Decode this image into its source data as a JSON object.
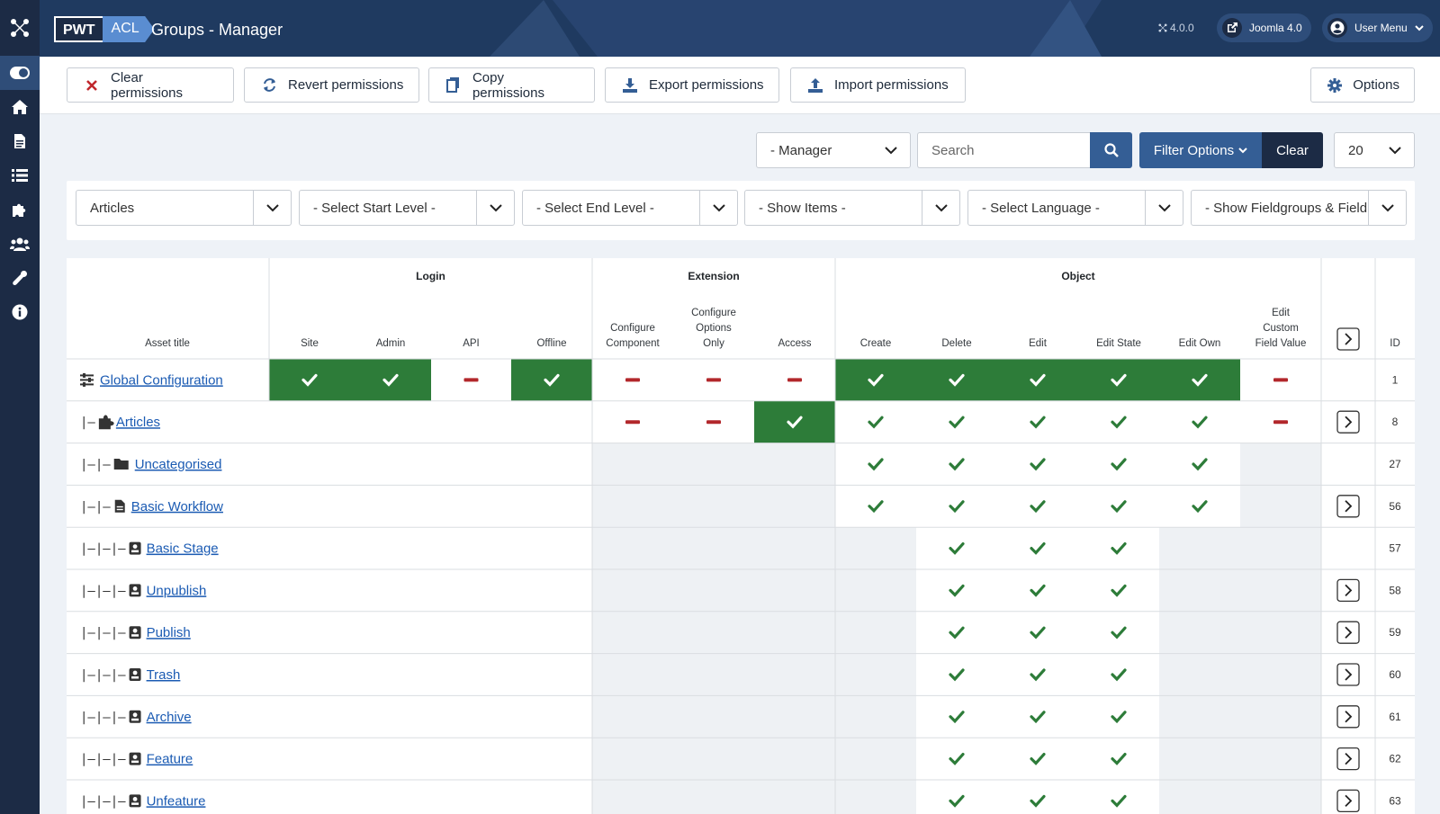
{
  "header": {
    "brand_pwt": "PWT",
    "brand_acl": "ACL",
    "title": "Groups - Manager",
    "version": "4.0.0",
    "site_link": "Joomla 4.0",
    "user_menu": "User Menu"
  },
  "sidebar": {
    "icons": [
      "joomla-logo-icon",
      "toggle-menu-icon",
      "home-icon",
      "content-icon",
      "list-icon",
      "components-icon",
      "users-icon",
      "wrench-icon",
      "info-icon"
    ]
  },
  "toolbar": {
    "clear": "Clear permissions",
    "revert": "Revert permissions",
    "copy": "Copy permissions",
    "export": "Export permissions",
    "import": "Import permissions",
    "options": "Options"
  },
  "filters": {
    "group": "- Manager",
    "search_placeholder": "Search",
    "filter_options": "Filter Options",
    "clear": "Clear",
    "limit": "20",
    "component": "Articles",
    "start_level": "- Select Start Level -",
    "end_level": "- Select End Level -",
    "show_items": "- Show Items -",
    "language": "- Select Language -",
    "fieldgroups": "- Show Fieldgroups & Field"
  },
  "table": {
    "groups": {
      "login": "Login",
      "extension": "Extension",
      "object": "Object"
    },
    "columns": {
      "asset": "Asset title",
      "site": "Site",
      "admin": "Admin",
      "api": "API",
      "offline": "Offline",
      "configure_component": [
        "Configure",
        "Component"
      ],
      "configure_options": [
        "Configure",
        "Options",
        "Only"
      ],
      "access": "Access",
      "create": "Create",
      "delete": "Delete",
      "edit": "Edit",
      "edit_state": "Edit State",
      "edit_own": "Edit Own",
      "edit_custom": [
        "Edit",
        "Custom",
        "Field Value"
      ],
      "id": "ID"
    },
    "rows": [
      {
        "prefix": "",
        "icon": "sliders-icon",
        "title": "Global Configuration",
        "id": "1",
        "expand": false,
        "cells": [
          "yes-bg",
          "yes-bg",
          "no",
          "yes-bg",
          "no",
          "no",
          "no",
          "yes-bg",
          "yes-bg",
          "yes-bg",
          "yes-bg",
          "yes-bg",
          "no"
        ]
      },
      {
        "prefix": "|—",
        "icon": "puzzle-icon",
        "title": "Articles",
        "id": "8",
        "expand": true,
        "cells": [
          "",
          "",
          "",
          "",
          "no",
          "no",
          "yes-bg",
          "yes",
          "yes",
          "yes",
          "yes",
          "yes",
          "no"
        ]
      },
      {
        "prefix": "|—|—",
        "icon": "folder-icon",
        "title": "Uncategorised",
        "id": "27",
        "expand": false,
        "cells": [
          "",
          "",
          "",
          "",
          "gray",
          "gray",
          "gray",
          "yes",
          "yes",
          "yes",
          "yes",
          "yes",
          "gray"
        ]
      },
      {
        "prefix": "|—|—",
        "icon": "file-icon",
        "title": "Basic Workflow",
        "id": "56",
        "expand": true,
        "cells": [
          "",
          "",
          "",
          "",
          "gray",
          "gray",
          "gray",
          "yes",
          "yes",
          "yes",
          "yes",
          "yes",
          "gray"
        ]
      },
      {
        "prefix": "|—|—|—",
        "icon": "stage-icon",
        "title": "Basic Stage",
        "id": "57",
        "expand": false,
        "cells": [
          "",
          "",
          "",
          "",
          "gray",
          "gray",
          "gray",
          "gray",
          "yes",
          "yes",
          "yes",
          "gray",
          "gray"
        ]
      },
      {
        "prefix": "|—|—|—",
        "icon": "stage-icon",
        "title": "Unpublish",
        "id": "58",
        "expand": true,
        "cells": [
          "",
          "",
          "",
          "",
          "gray",
          "gray",
          "gray",
          "gray",
          "yes",
          "yes",
          "yes",
          "gray",
          "gray"
        ]
      },
      {
        "prefix": "|—|—|—",
        "icon": "stage-icon",
        "title": "Publish",
        "id": "59",
        "expand": true,
        "cells": [
          "",
          "",
          "",
          "",
          "gray",
          "gray",
          "gray",
          "gray",
          "yes",
          "yes",
          "yes",
          "gray",
          "gray"
        ]
      },
      {
        "prefix": "|—|—|—",
        "icon": "stage-icon",
        "title": "Trash",
        "id": "60",
        "expand": true,
        "cells": [
          "",
          "",
          "",
          "",
          "gray",
          "gray",
          "gray",
          "gray",
          "yes",
          "yes",
          "yes",
          "gray",
          "gray"
        ]
      },
      {
        "prefix": "|—|—|—",
        "icon": "stage-icon",
        "title": "Archive",
        "id": "61",
        "expand": true,
        "cells": [
          "",
          "",
          "",
          "",
          "gray",
          "gray",
          "gray",
          "gray",
          "yes",
          "yes",
          "yes",
          "gray",
          "gray"
        ]
      },
      {
        "prefix": "|—|—|—",
        "icon": "stage-icon",
        "title": "Feature",
        "id": "62",
        "expand": true,
        "cells": [
          "",
          "",
          "",
          "",
          "gray",
          "gray",
          "gray",
          "gray",
          "yes",
          "yes",
          "yes",
          "gray",
          "gray"
        ]
      },
      {
        "prefix": "|—|—|—",
        "icon": "stage-icon",
        "title": "Unfeature",
        "id": "63",
        "expand": true,
        "cells": [
          "",
          "",
          "",
          "",
          "gray",
          "gray",
          "gray",
          "gray",
          "yes",
          "yes",
          "yes",
          "gray",
          "gray"
        ]
      }
    ]
  },
  "colors": {
    "sidebar": "#1c2b45",
    "header": "#1f3a60",
    "allowed_bg": "#2d7c39",
    "check": "#2d7c39",
    "denied": "#b2272b",
    "inherited_bg": "#eef1f4",
    "link": "#1b5bb3",
    "primary_button": "#345e95"
  }
}
